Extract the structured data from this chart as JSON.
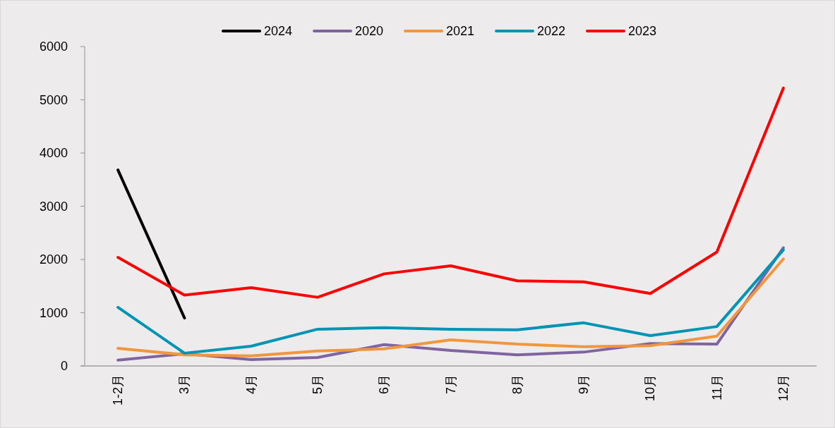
{
  "chart_data": {
    "type": "line",
    "categories": [
      "1-2月",
      "3月",
      "4月",
      "5月",
      "6月",
      "7月",
      "8月",
      "9月",
      "10月",
      "11月",
      "12月"
    ],
    "series": [
      {
        "name": "2024",
        "color": "#000000",
        "values": [
          3680,
          900,
          null,
          null,
          null,
          null,
          null,
          null,
          null,
          null,
          null
        ]
      },
      {
        "name": "2020",
        "color": "#8064a2",
        "values": [
          110,
          230,
          120,
          160,
          400,
          290,
          210,
          260,
          420,
          410,
          2220
        ]
      },
      {
        "name": "2021",
        "color": "#f0963c",
        "values": [
          330,
          210,
          190,
          280,
          320,
          490,
          410,
          360,
          380,
          560,
          2010
        ]
      },
      {
        "name": "2022",
        "color": "#0094b4",
        "values": [
          1100,
          240,
          370,
          690,
          720,
          690,
          680,
          810,
          570,
          740,
          2180
        ]
      },
      {
        "name": "2023",
        "color": "#ff0000",
        "values": [
          2040,
          1330,
          1470,
          1290,
          1730,
          1880,
          1600,
          1580,
          1360,
          2140,
          5220
        ]
      }
    ],
    "ylim": [
      0,
      6000
    ],
    "yticks": [
      0,
      1000,
      2000,
      3000,
      4000,
      5000,
      6000
    ],
    "grid": false,
    "legend": "top",
    "marker": "none",
    "line_style": "solid"
  }
}
